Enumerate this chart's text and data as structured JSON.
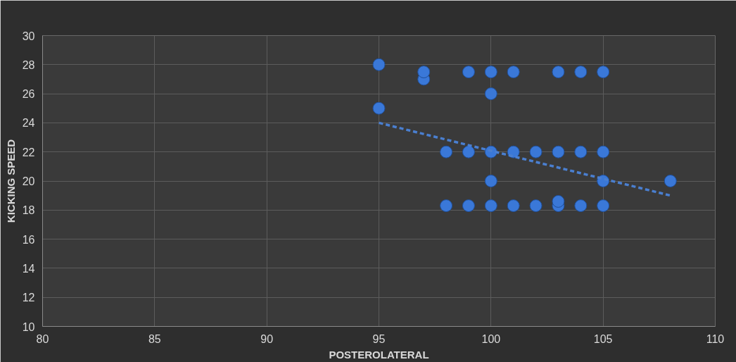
{
  "chart_data": {
    "type": "scatter",
    "xlabel": "POSTEROLATERAL",
    "ylabel": "KICKING SPEED",
    "xlim": [
      80,
      110
    ],
    "ylim": [
      10,
      30
    ],
    "xticks": [
      80,
      85,
      90,
      95,
      100,
      105,
      110
    ],
    "yticks": [
      10,
      12,
      14,
      16,
      18,
      20,
      22,
      24,
      26,
      28,
      30
    ],
    "grid": true,
    "marker": "circle",
    "series": [
      {
        "color": "#3a78d8",
        "x": [
          95,
          95,
          97,
          97,
          99,
          100,
          101,
          103,
          104,
          105,
          100,
          98,
          99,
          100,
          101,
          102,
          103,
          104,
          105,
          100,
          105,
          108,
          98,
          99,
          100,
          101,
          102,
          103,
          103,
          104,
          105
        ],
        "values": [
          28,
          25,
          27,
          27.5,
          27.5,
          27.5,
          27.5,
          27.5,
          27.5,
          27.5,
          26,
          22,
          22,
          22,
          22,
          22,
          22,
          22,
          22,
          20,
          20,
          20,
          18.3,
          18.3,
          18.3,
          18.3,
          18.3,
          18.3,
          18.6,
          18.3,
          18.3
        ]
      },
      {
        "type": "line",
        "color": "#4a7fd0",
        "line_style": "dashed",
        "marker": "none",
        "x": [
          95,
          108
        ],
        "values": [
          24,
          19
        ]
      }
    ]
  }
}
